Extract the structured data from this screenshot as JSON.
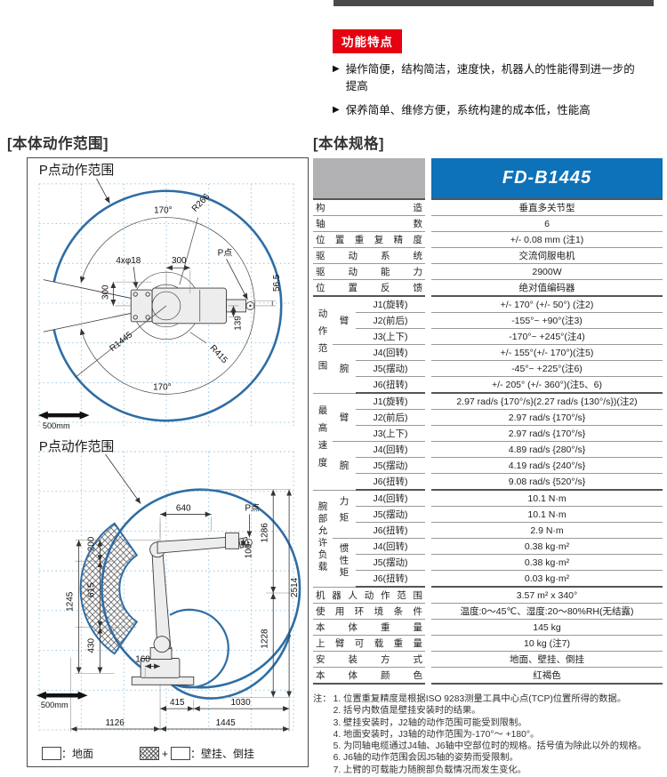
{
  "features": {
    "badge": "功能特点",
    "items": [
      "操作简便，结构简洁，速度快，机器人的性能得到进一步的提高",
      "保养简单、维修方便，系统构建的成本低，性能高"
    ]
  },
  "motion": {
    "title": "[本体动作范围]",
    "legend": {
      "ground": "：地面",
      "plus": "+",
      "wall": "：壁挂、倒挂"
    },
    "top": {
      "title": "P点动作范围",
      "angle_top": "170°",
      "angle_bottom": "170°",
      "bolt": "4xφ18",
      "d300h": "300",
      "d300v": "300",
      "d139": "139",
      "d56_5": "56.5",
      "r266": "R266",
      "r415": "R415",
      "r1445": "R1445",
      "p_point": "P点",
      "scale": "500mm"
    },
    "side": {
      "title": "P点动作范围",
      "d640": "640",
      "p_point": "P点",
      "d100": "100",
      "d200": "200",
      "d615": "615",
      "d430": "430",
      "d1245": "1245",
      "d1286": "1286",
      "d2514": "2514",
      "d1228": "1228",
      "d160": "160",
      "d415": "415",
      "d1030": "1030",
      "d1126": "1126",
      "d1445": "1445",
      "scale": "500mm"
    }
  },
  "spec": {
    "title": "[本体规格]",
    "model": "FD-B1445",
    "basic": [
      {
        "label": "构造",
        "value": "垂直多关节型"
      },
      {
        "label": "轴数",
        "value": "6"
      },
      {
        "label": "位置重复精度",
        "value": "+/- 0.08 mm (注1)"
      },
      {
        "label": "驱动系统",
        "value": "交流伺服电机"
      },
      {
        "label": "驱动能力",
        "value": "2900W"
      },
      {
        "label": "位置反馈",
        "value": "绝对值编码器"
      }
    ],
    "motion_range": {
      "group": "动作范围",
      "arm": "臂",
      "wrist": "腕",
      "rows": [
        {
          "joint": "J1(旋转)",
          "value": "+/- 170° (+/- 50°) (注2)"
        },
        {
          "joint": "J2(前后)",
          "value": "-155°~ +90°(注3)"
        },
        {
          "joint": "J3(上下)",
          "value": "-170°~ +245°(注4)"
        },
        {
          "joint": "J4(回转)",
          "value": "+/- 155°(+/- 170°)(注5)"
        },
        {
          "joint": "J5(摆动)",
          "value": "-45°~ +225°(注6)"
        },
        {
          "joint": "J6(扭转)",
          "value": "+/- 205° (+/- 360°)(注5、6)"
        }
      ]
    },
    "speed": {
      "group": "最高速度",
      "arm": "臂",
      "wrist": "腕",
      "rows": [
        {
          "joint": "J1(旋转)",
          "value": "2.97 rad/s {170°/s}(2.27 rad/s {130°/s})(注2)"
        },
        {
          "joint": "J2(前后)",
          "value": "2.97 rad/s {170°/s}"
        },
        {
          "joint": "J3(上下)",
          "value": "2.97 rad/s {170°/s}"
        },
        {
          "joint": "J4(回转)",
          "value": "4.89 rad/s {280°/s}"
        },
        {
          "joint": "J5(摆动)",
          "value": "4.19 rad/s {240°/s}"
        },
        {
          "joint": "J6(扭转)",
          "value": "9.08 rad/s {520°/s}"
        }
      ]
    },
    "load": {
      "group": "腕部允许负载",
      "torque": "力矩",
      "inertia": "惯性矩",
      "rows": [
        {
          "joint": "J4(回转)",
          "value": "10.1 N·m"
        },
        {
          "joint": "J5(摆动)",
          "value": "10.1 N·m"
        },
        {
          "joint": "J6(扭转)",
          "value": "2.9 N·m"
        },
        {
          "joint": "J4(回转)",
          "value": "0.38 kg·m²"
        },
        {
          "joint": "J5(摆动)",
          "value": "0.38 kg·m²"
        },
        {
          "joint": "J6(扭转)",
          "value": "0.03 kg·m²"
        }
      ]
    },
    "info": [
      {
        "label": "机器人动作范围",
        "value": "3.57 m² x 340°"
      },
      {
        "label": "使用环境条件",
        "value": "温度:0～45℃、湿度:20～80%RH(无结露)"
      },
      {
        "label": "本体重量",
        "value": "145 kg"
      },
      {
        "label": "上臂可载重量",
        "value": "10 kg (注7)"
      },
      {
        "label": "安装方式",
        "value": "地面、壁挂、倒挂"
      },
      {
        "label": "本体颜色",
        "value": "红褐色"
      }
    ],
    "notes": {
      "prefix": "注：",
      "items": [
        "1. 位置重复精度是根据ISO 9283测量工具中心点(TCP)位置所得的数据。",
        "2. 括号内数值是壁挂安装时的结果。",
        "3. 壁挂安装时，J2轴的动作范围可能受到限制。",
        "4. 地面安装时，J3轴的动作范围为-170°～ +180°。",
        "5. 为同轴电缆通过J4轴、J6轴中空部位时的规格。括号值为除此以外的规格。",
        "6. J6轴的动作范围会因J5轴的姿势而受限制。",
        "7. 上臂的可载能力随腕部负载情况而发生变化。"
      ]
    }
  }
}
